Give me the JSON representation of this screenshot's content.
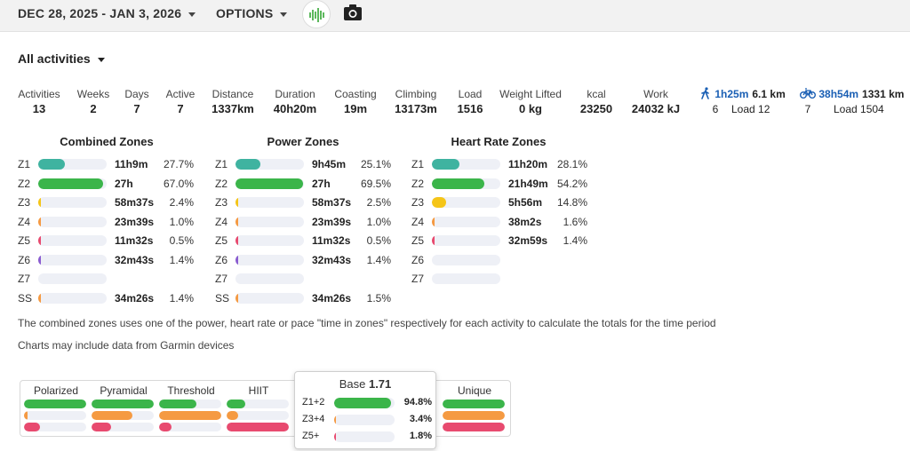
{
  "topbar": {
    "date_range": "DEC 28, 2025 - JAN 3, 2026",
    "options": "OPTIONS",
    "logo_icon": "waveform-icon",
    "camera_icon": "camera-icon"
  },
  "filter": {
    "label": "All activities"
  },
  "stats": [
    {
      "label": "Activities",
      "value": "13"
    },
    {
      "label": "Weeks",
      "value": "2"
    },
    {
      "label": "Days",
      "value": "7"
    },
    {
      "label": "Active",
      "value": "7"
    },
    {
      "label": "Distance",
      "value": "1337km"
    },
    {
      "label": "Duration",
      "value": "40h20m"
    },
    {
      "label": "Coasting",
      "value": "19m"
    },
    {
      "label": "Climbing",
      "value": "13173m"
    },
    {
      "label": "Load",
      "value": "1516"
    },
    {
      "label": "Weight Lifted",
      "value": "0 kg"
    },
    {
      "label": "kcal",
      "value": "23250"
    },
    {
      "label": "Work",
      "value": "24032 kJ"
    }
  ],
  "activity_types": [
    {
      "icon": "walk-icon",
      "time": "1h25m",
      "distance": "6.1 km",
      "count": "6",
      "load": "Load 12"
    },
    {
      "icon": "bike-icon",
      "time": "38h54m",
      "distance": "1331 km",
      "count": "7",
      "load": "Load 1504"
    }
  ],
  "zone_tables": [
    {
      "title": "Combined Zones",
      "rows": [
        {
          "zone": "Z1",
          "time": "11h9m",
          "pct": "27.7%",
          "fraction": 0.277,
          "color": "#3fb3a0"
        },
        {
          "zone": "Z2",
          "time": "27h",
          "pct": "67.0%",
          "fraction": 0.67,
          "color": "#3bb54a"
        },
        {
          "zone": "Z3",
          "time": "58m37s",
          "pct": "2.4%",
          "fraction": 0.024,
          "color": "#f5c518"
        },
        {
          "zone": "Z4",
          "time": "23m39s",
          "pct": "1.0%",
          "fraction": 0.01,
          "color": "#f59a42"
        },
        {
          "zone": "Z5",
          "time": "11m32s",
          "pct": "0.5%",
          "fraction": 0.005,
          "color": "#e84a6f"
        },
        {
          "zone": "Z6",
          "time": "32m43s",
          "pct": "1.4%",
          "fraction": 0.014,
          "color": "#8a5cd0"
        },
        {
          "zone": "Z7",
          "time": "",
          "pct": "",
          "fraction": 0,
          "color": "#555555"
        },
        {
          "zone": "SS",
          "time": "34m26s",
          "pct": "1.4%",
          "fraction": 0.014,
          "color": "#f59a42"
        }
      ]
    },
    {
      "title": "Power Zones",
      "rows": [
        {
          "zone": "Z1",
          "time": "9h45m",
          "pct": "25.1%",
          "fraction": 0.251,
          "color": "#3fb3a0"
        },
        {
          "zone": "Z2",
          "time": "27h",
          "pct": "69.5%",
          "fraction": 0.695,
          "color": "#3bb54a"
        },
        {
          "zone": "Z3",
          "time": "58m37s",
          "pct": "2.5%",
          "fraction": 0.025,
          "color": "#f5c518"
        },
        {
          "zone": "Z4",
          "time": "23m39s",
          "pct": "1.0%",
          "fraction": 0.01,
          "color": "#f59a42"
        },
        {
          "zone": "Z5",
          "time": "11m32s",
          "pct": "0.5%",
          "fraction": 0.005,
          "color": "#e84a6f"
        },
        {
          "zone": "Z6",
          "time": "32m43s",
          "pct": "1.4%",
          "fraction": 0.014,
          "color": "#8a5cd0"
        },
        {
          "zone": "Z7",
          "time": "",
          "pct": "",
          "fraction": 0,
          "color": "#555555"
        },
        {
          "zone": "SS",
          "time": "34m26s",
          "pct": "1.5%",
          "fraction": 0.015,
          "color": "#f59a42"
        }
      ]
    },
    {
      "title": "Heart Rate Zones",
      "rows": [
        {
          "zone": "Z1",
          "time": "11h20m",
          "pct": "28.1%",
          "fraction": 0.281,
          "color": "#3fb3a0"
        },
        {
          "zone": "Z2",
          "time": "21h49m",
          "pct": "54.2%",
          "fraction": 0.542,
          "color": "#3bb54a"
        },
        {
          "zone": "Z3",
          "time": "5h56m",
          "pct": "14.8%",
          "fraction": 0.148,
          "color": "#f5c518"
        },
        {
          "zone": "Z4",
          "time": "38m2s",
          "pct": "1.6%",
          "fraction": 0.016,
          "color": "#f59a42"
        },
        {
          "zone": "Z5",
          "time": "32m59s",
          "pct": "1.4%",
          "fraction": 0.014,
          "color": "#e84a6f"
        },
        {
          "zone": "Z6",
          "time": "",
          "pct": "",
          "fraction": 0,
          "color": "#8a5cd0"
        },
        {
          "zone": "Z7",
          "time": "",
          "pct": "",
          "fraction": 0,
          "color": "#555555"
        }
      ]
    }
  ],
  "notes": {
    "combined": "The combined zones uses one of the power, heart rate or pace \"time in zones\" respectively for each activity to calculate the totals for the time period",
    "garmin": "Charts may include data from Garmin devices"
  },
  "polarization": {
    "columns": [
      {
        "label": "Polarized",
        "bars": [
          {
            "fraction": 1.0,
            "color": "#3bb54a"
          },
          {
            "fraction": 0.05,
            "color": "#f59a42"
          },
          {
            "fraction": 0.25,
            "color": "#e84a6f"
          }
        ]
      },
      {
        "label": "Pyramidal",
        "bars": [
          {
            "fraction": 1.0,
            "color": "#3bb54a"
          },
          {
            "fraction": 0.66,
            "color": "#f59a42"
          },
          {
            "fraction": 0.32,
            "color": "#e84a6f"
          }
        ]
      },
      {
        "label": "Threshold",
        "bars": [
          {
            "fraction": 0.6,
            "color": "#3bb54a"
          },
          {
            "fraction": 1.0,
            "color": "#f59a42"
          },
          {
            "fraction": 0.2,
            "color": "#e84a6f"
          }
        ]
      },
      {
        "label": "HIIT",
        "bars": [
          {
            "fraction": 0.3,
            "color": "#3bb54a"
          },
          {
            "fraction": 0.18,
            "color": "#f59a42"
          },
          {
            "fraction": 1.0,
            "color": "#e84a6f"
          }
        ]
      },
      {
        "label": "Unique",
        "bars": [
          {
            "fraction": 1.0,
            "color": "#3bb54a"
          },
          {
            "fraction": 1.0,
            "color": "#f59a42"
          },
          {
            "fraction": 1.0,
            "color": "#e84a6f"
          }
        ]
      }
    ],
    "popup": {
      "title": "Base",
      "score": "1.71",
      "rows": [
        {
          "label": "Z1+2",
          "value": "94.8%",
          "fraction": 0.948,
          "color": "#3bb54a"
        },
        {
          "label": "Z3+4",
          "value": "3.4%",
          "fraction": 0.034,
          "color": "#f59a42"
        },
        {
          "label": "Z5+",
          "value": "1.8%",
          "fraction": 0.018,
          "color": "#e84a6f"
        }
      ]
    }
  }
}
